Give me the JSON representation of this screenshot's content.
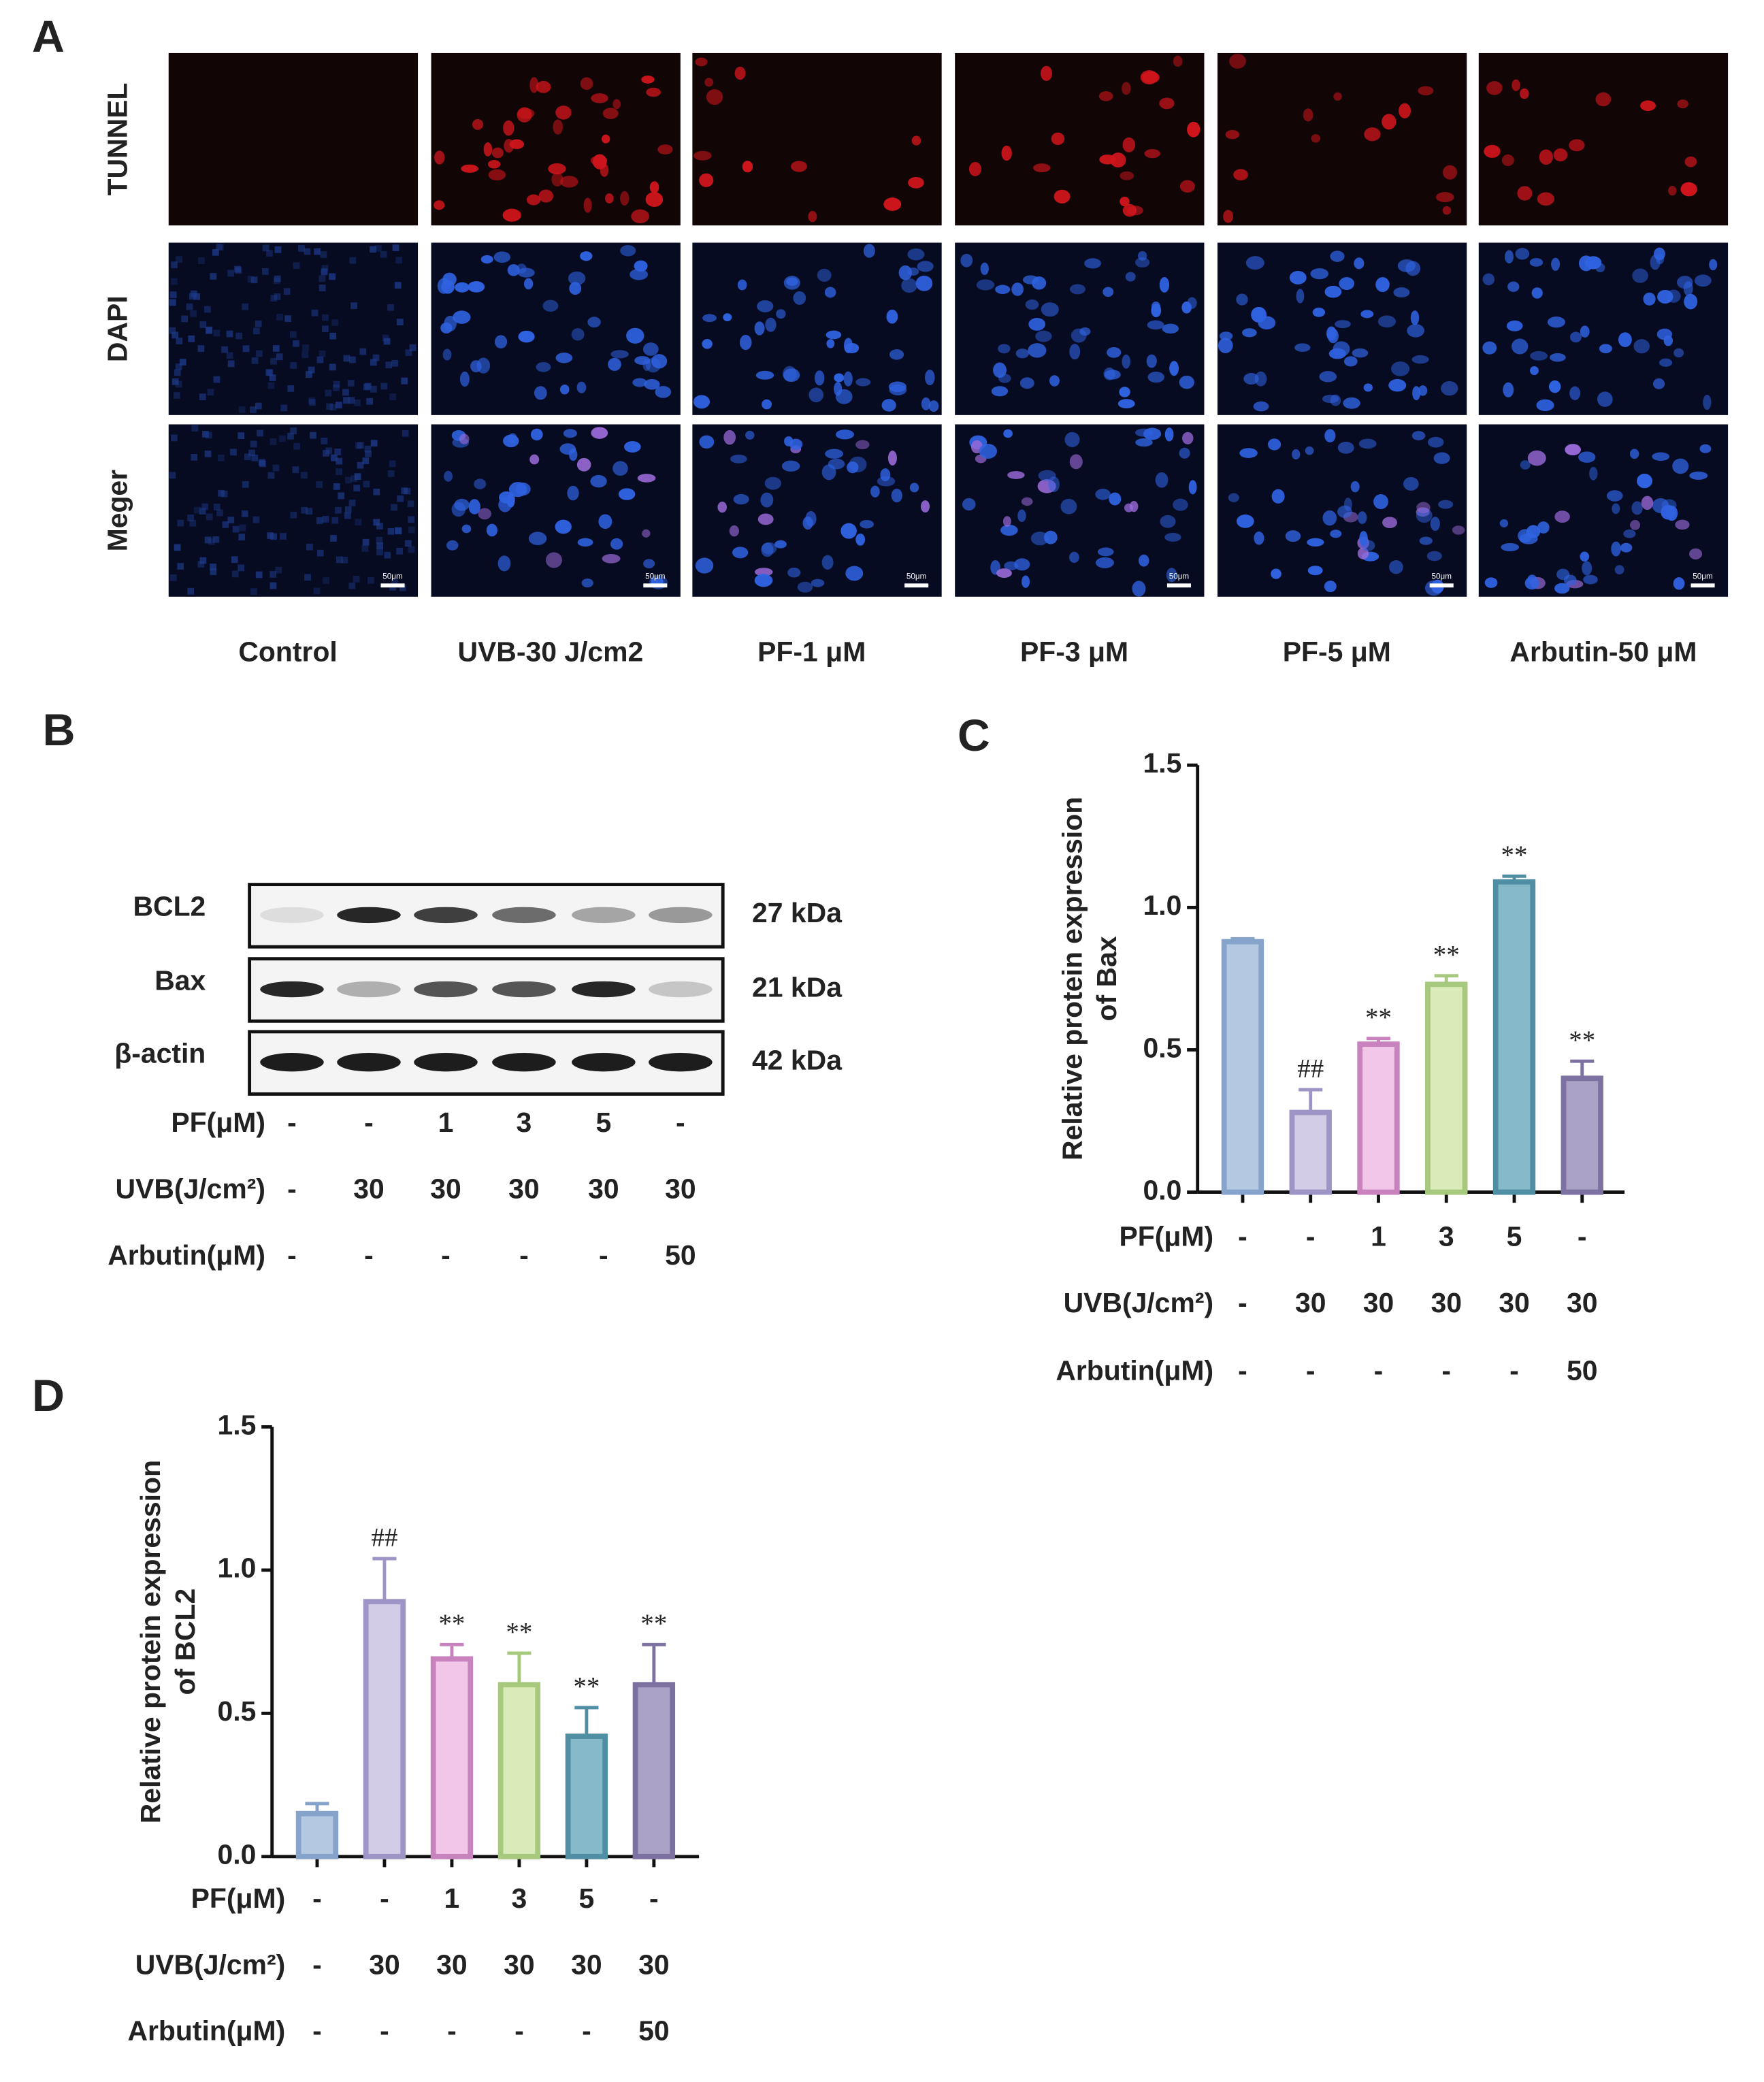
{
  "panel_labels": [
    "A",
    "B",
    "C",
    "D"
  ],
  "panel_a": {
    "row_labels": [
      "TUNNEL",
      "DAPI",
      "Meger"
    ],
    "column_labels": [
      "Control",
      "UVB-30 J/cm2",
      "PF-1 μM",
      "PF-3 μM",
      "PF-5 μM",
      "Arbutin-50 μM"
    ],
    "scale_bar": "50μm"
  },
  "panel_b": {
    "blots": [
      {
        "label": "BCL2",
        "size": "27 kDa"
      },
      {
        "label": "Bax",
        "size": "21 kDa"
      },
      {
        "label": "β-actin",
        "size": "42 kDa"
      }
    ],
    "treatments": [
      {
        "label": "PF(μM)",
        "values": [
          "-",
          "-",
          "1",
          "3",
          "5",
          "-"
        ]
      },
      {
        "label": "UVB(J/cm²)",
        "values": [
          "-",
          "30",
          "30",
          "30",
          "30",
          "30"
        ]
      },
      {
        "label": "Arbutin(μM)",
        "values": [
          "-",
          "-",
          "-",
          "-",
          "-",
          "50"
        ]
      }
    ]
  },
  "chart_data": [
    {
      "type": "bar",
      "ylabel": [
        "Relative protein expression",
        "of Bax"
      ],
      "values": [
        0.88,
        0.28,
        0.52,
        0.73,
        1.09,
        0.4
      ],
      "errors": [
        0.01,
        0.08,
        0.02,
        0.03,
        0.02,
        0.06
      ],
      "annotations": [
        null,
        "##",
        "**",
        "**",
        "**",
        "**"
      ],
      "colors": [
        "#b4c8e2",
        "#d2cce6",
        "#f2c6e8",
        "#d9ebb8",
        "#86b9c9",
        "#aaa1c6"
      ],
      "edge_colors": [
        "#86a4cb",
        "#9f94c6",
        "#c882bd",
        "#a6c97d",
        "#4f8ea3",
        "#7c71a0"
      ],
      "ylim": [
        0,
        1.5
      ],
      "yticks": [
        {
          "value": 0,
          "label": "0.0"
        },
        0.5,
        {
          "value": 1,
          "label": "1.0"
        },
        1.5
      ],
      "treatments": [
        {
          "label": "PF(μM)",
          "values": [
            "-",
            "-",
            "1",
            "3",
            "5",
            "-"
          ]
        },
        {
          "label": "UVB(J/cm²)",
          "values": [
            "-",
            "30",
            "30",
            "30",
            "30",
            "30"
          ]
        },
        {
          "label": "Arbutin(μM)",
          "values": [
            "-",
            "-",
            "-",
            "-",
            "-",
            "50"
          ]
        }
      ]
    },
    {
      "type": "bar",
      "ylabel": [
        "Relative protein expression",
        "of BCL2"
      ],
      "values": [
        0.15,
        0.89,
        0.69,
        0.6,
        0.42,
        0.6
      ],
      "errors": [
        0.035,
        0.15,
        0.05,
        0.11,
        0.1,
        0.14
      ],
      "annotations": [
        null,
        "##",
        "**",
        "**",
        "**",
        "**"
      ],
      "colors": [
        "#b4c8e2",
        "#d2cce6",
        "#f2c6e8",
        "#d9ebb8",
        "#86b9c9",
        "#aaa1c6"
      ],
      "edge_colors": [
        "#86a4cb",
        "#9f94c6",
        "#c882bd",
        "#a6c97d",
        "#4f8ea3",
        "#7c71a0"
      ],
      "ylim": [
        0,
        1.5
      ],
      "yticks": [
        {
          "value": 0,
          "label": "0.0"
        },
        0.5,
        {
          "value": 1,
          "label": "1.0"
        },
        1.5
      ],
      "treatments": [
        {
          "label": "PF(μM)",
          "values": [
            "-",
            "-",
            "1",
            "3",
            "5",
            "-"
          ]
        },
        {
          "label": "UVB(J/cm²)",
          "values": [
            "-",
            "30",
            "30",
            "30",
            "30",
            "30"
          ]
        },
        {
          "label": "Arbutin(μM)",
          "values": [
            "-",
            "-",
            "-",
            "-",
            "-",
            "50"
          ]
        }
      ]
    }
  ]
}
